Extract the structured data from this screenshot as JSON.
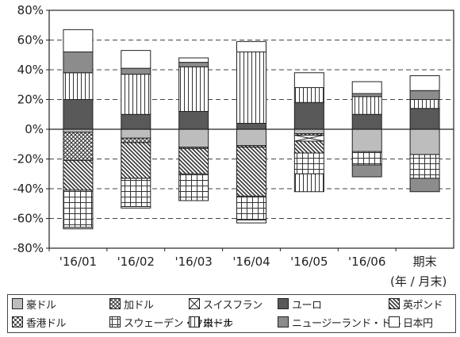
{
  "chart_data": {
    "type": "bar",
    "stacked": true,
    "categories": [
      "'16/01",
      "'16/02",
      "'16/03",
      "'16/04",
      "'16/05",
      "'16/06",
      "期末"
    ],
    "x_unit": "(年 / 月末)",
    "ylim": [
      -80,
      80
    ],
    "yticks": [
      "80%",
      "60%",
      "40%",
      "20%",
      "0%",
      "-20%",
      "-40%",
      "-60%",
      "-80%"
    ],
    "gridlines": "dashed",
    "legend_position": "bottom",
    "series": [
      {
        "name": "豪ドル",
        "pattern": "solid-lightgray",
        "values": [
          -2,
          -6,
          -12,
          -11,
          -3,
          -15,
          -17
        ]
      },
      {
        "name": "加ドル",
        "pattern": "crosshatch",
        "values": [
          -19,
          -3,
          -1,
          -1,
          -1,
          0,
          0
        ]
      },
      {
        "name": "スイスフラン",
        "pattern": "x-box",
        "values": [
          0,
          0,
          0,
          0,
          -4,
          0,
          0
        ]
      },
      {
        "name": "ユーロ",
        "pattern": "solid-darkgray",
        "values": [
          20,
          10,
          12,
          4,
          18,
          10,
          14
        ]
      },
      {
        "name": "英ポンド",
        "pattern": "diagonal",
        "values": [
          -20,
          -24,
          -17,
          -33,
          -8,
          0,
          0
        ]
      },
      {
        "name": "香港ドル",
        "pattern": "checker",
        "values": [
          0,
          0,
          0,
          0,
          0,
          0,
          0
        ]
      },
      {
        "name": "スウェーデン・クローナ",
        "pattern": "grid",
        "values": [
          -25,
          -19,
          -18,
          -16,
          -14,
          -9,
          -16
        ]
      },
      {
        "name": "米ドル",
        "pattern": "vertical",
        "values": [
          18,
          27,
          30,
          48,
          10,
          12,
          6
        ]
      },
      {
        "name": "ニュージーランド・ドル",
        "pattern": "solid-gray",
        "values": [
          14,
          4,
          3,
          0,
          0,
          2,
          6
        ]
      },
      {
        "name": "日本円",
        "pattern": "solid-white",
        "values": [
          15,
          12,
          3,
          7,
          10,
          8,
          10
        ]
      }
    ],
    "extra_negative_segments": [
      {
        "category": "'16/01",
        "pattern": "solid-white",
        "value": -1
      },
      {
        "category": "'16/02",
        "pattern": "solid-white",
        "value": -1
      },
      {
        "category": "'16/03",
        "pattern": "grid",
        "value": 0
      },
      {
        "category": "'16/04",
        "pattern": "solid-white",
        "value": -2
      },
      {
        "category": "'16/05",
        "pattern": "vertical",
        "value": -12
      },
      {
        "category": "'16/06",
        "pattern": "solid-gray",
        "value": -8
      },
      {
        "category": "期末",
        "pattern": "solid-gray",
        "value": -9
      }
    ]
  },
  "legend": {
    "items": [
      {
        "label": "豪ドル",
        "pattern": "solid-lightgray"
      },
      {
        "label": "加ドル",
        "pattern": "crosshatch"
      },
      {
        "label": "スイスフラン",
        "pattern": "x-box"
      },
      {
        "label": "ユーロ",
        "pattern": "solid-darkgray"
      },
      {
        "label": "英ポンド",
        "pattern": "diagonal"
      },
      {
        "label": "香港ドル",
        "pattern": "checker"
      },
      {
        "label": "スウェーデン・クローナ",
        "pattern": "grid"
      },
      {
        "label": "米ドル",
        "pattern": "vertical"
      },
      {
        "label": "ニュージーランド・ドル",
        "pattern": "solid-gray"
      },
      {
        "label": "日本円",
        "pattern": "solid-white"
      }
    ]
  }
}
